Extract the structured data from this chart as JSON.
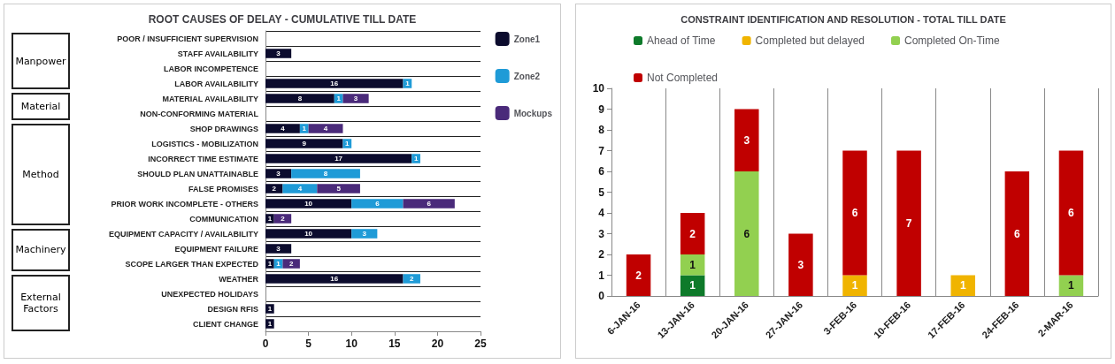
{
  "chart_data": [
    {
      "type": "bar",
      "orientation": "horizontal",
      "stacked": true,
      "title": "ROOT CAUSES OF DELAY - CUMULATIVE TILL DATE",
      "categories": [
        "POOR / INSUFFICIENT SUPERVISION",
        "STAFF AVAILABILITY",
        "LABOR INCOMPETENCE",
        "LABOR AVAILABILITY",
        "MATERIAL AVAILABILITY",
        "NON-CONFORMING MATERIAL",
        "SHOP DRAWINGS",
        "LOGISTICS - MOBILIZATION",
        "INCORRECT TIME ESTIMATE",
        "SHOULD PLAN UNATTAINABLE",
        "FALSE PROMISES",
        "PRIOR WORK INCOMPLETE - OTHERS",
        "COMMUNICATION",
        "EQUIPMENT CAPACITY / AVAILABILITY",
        "EQUIPMENT FAILURE",
        "SCOPE LARGER THAN EXPECTED",
        "WEATHER",
        "UNEXPECTED HOLIDAYS",
        "DESIGN RFIS",
        "CLIENT CHANGE"
      ],
      "series": [
        {
          "name": "Zone1",
          "color": "#0c0c2e",
          "values": [
            null,
            3,
            null,
            16,
            8,
            null,
            4,
            9,
            17,
            3,
            2,
            10,
            1,
            10,
            3,
            1,
            16,
            null,
            1,
            1
          ]
        },
        {
          "name": "Zone2",
          "color": "#1f9bd7",
          "values": [
            null,
            null,
            null,
            1,
            1,
            null,
            1,
            1,
            1,
            8,
            4,
            6,
            null,
            3,
            null,
            1,
            2,
            null,
            null,
            null
          ]
        },
        {
          "name": "Mockups",
          "color": "#4a2a7a",
          "values": [
            null,
            null,
            null,
            null,
            3,
            null,
            4,
            null,
            null,
            null,
            5,
            6,
            2,
            null,
            null,
            2,
            null,
            null,
            null,
            null
          ]
        }
      ],
      "xlim": [
        0,
        25
      ],
      "xticks": [
        0,
        5,
        10,
        15,
        20,
        25
      ],
      "grid": "y",
      "legend": "top right",
      "data_labels": true,
      "annotations": [
        "Manpower",
        "Material",
        "Method",
        "Machinery",
        "External Factors"
      ]
    },
    {
      "type": "bar",
      "stacked": true,
      "title": "CONSTRAINT IDENTIFICATION AND RESOLUTION - TOTAL TILL DATE",
      "categories": [
        "6-JAN-16",
        "13-JAN-16",
        "20-JAN-16",
        "27-JAN-16",
        "3-FEB-16",
        "10-FEB-16",
        "17-FEB-16",
        "24-FEB-16",
        "2-MAR-16"
      ],
      "series": [
        {
          "name": "Ahead of Time",
          "color": "#0e7a2a",
          "values": [
            null,
            1,
            null,
            null,
            null,
            null,
            null,
            null,
            null
          ]
        },
        {
          "name": "Completed On-Time",
          "color": "#92d050",
          "values": [
            null,
            1,
            6,
            null,
            null,
            null,
            null,
            null,
            1
          ]
        },
        {
          "name": "Completed but delayed",
          "color": "#f0b400",
          "values": [
            null,
            null,
            null,
            null,
            1,
            null,
            1,
            null,
            null
          ]
        },
        {
          "name": "Not Completed",
          "color": "#c00000",
          "values": [
            2,
            2,
            3,
            3,
            6,
            7,
            null,
            6,
            6
          ]
        }
      ],
      "ylim": [
        0,
        10
      ],
      "yticks": [
        0,
        1,
        2,
        3,
        4,
        5,
        6,
        7,
        8,
        9,
        10
      ],
      "grid": "x",
      "legend": "top",
      "data_labels": true
    }
  ]
}
